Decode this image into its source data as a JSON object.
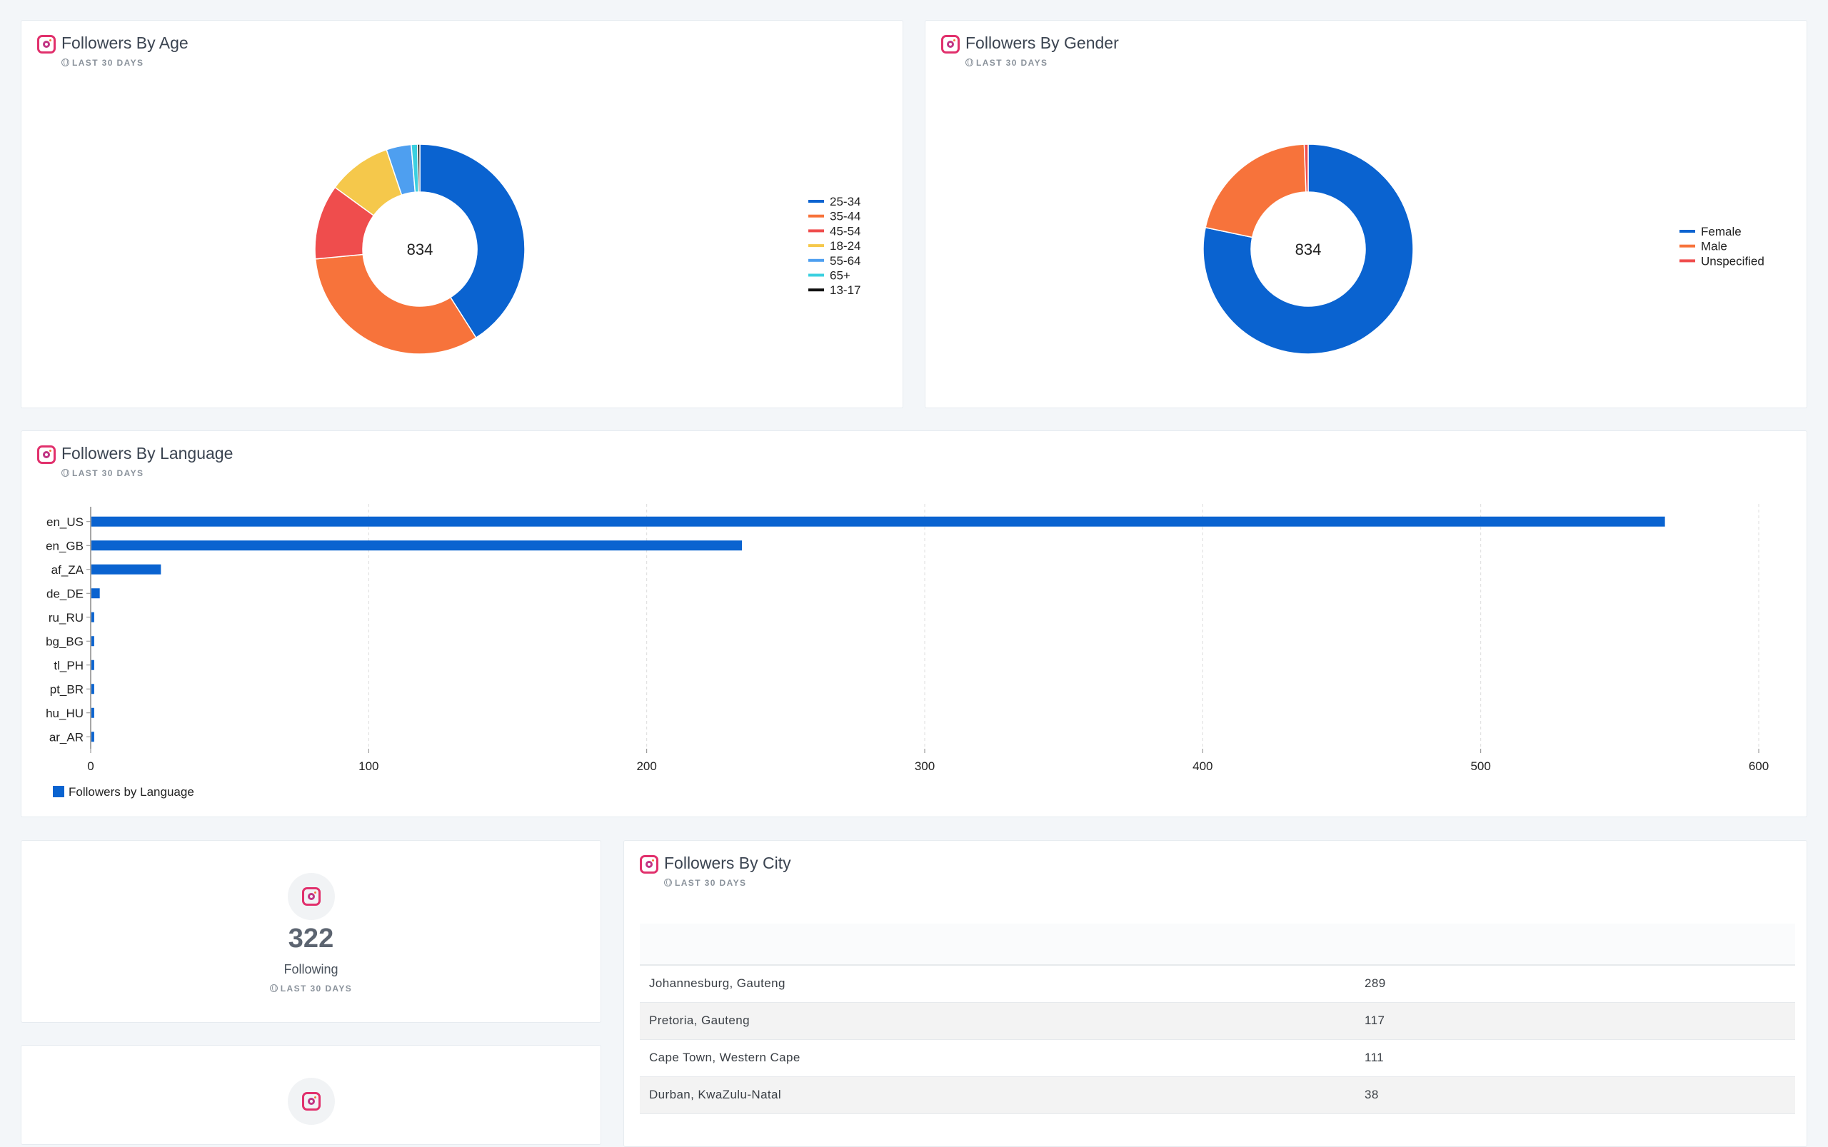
{
  "cards": {
    "age": {
      "title": "Followers By Age",
      "period": "LAST 30 DAYS"
    },
    "gender": {
      "title": "Followers By Gender",
      "period": "LAST 30 DAYS"
    },
    "language": {
      "title": "Followers By Language",
      "period": "LAST 30 DAYS"
    },
    "following": {
      "value": "322",
      "label": "Following",
      "period": "LAST 30 DAYS"
    },
    "city": {
      "title": "Followers By City",
      "period": "LAST 30 DAYS"
    }
  },
  "chart_data": [
    {
      "type": "pie",
      "center_label": "834",
      "legend_position": "right",
      "labels": [
        "25-34",
        "35-44",
        "45-54",
        "18-24",
        "55-64",
        "65+",
        "13-17"
      ],
      "values": [
        342,
        271,
        96,
        82,
        32,
        8,
        3
      ],
      "colors": [
        "#0a63d0",
        "#f7733b",
        "#ef4d4d",
        "#f5c84b",
        "#4e9ff0",
        "#3bd0e0",
        "#111111"
      ]
    },
    {
      "type": "pie",
      "center_label": "834",
      "legend_position": "right",
      "labels": [
        "Female",
        "Male",
        "Unspecified"
      ],
      "values": [
        653,
        176,
        5
      ],
      "colors": [
        "#0a63d0",
        "#f7733b",
        "#ef4d4d"
      ]
    },
    {
      "type": "bar",
      "orientation": "horizontal",
      "categories": [
        "en_US",
        "en_GB",
        "af_ZA",
        "de_DE",
        "ru_RU",
        "bg_BG",
        "tl_PH",
        "pt_BR",
        "hu_HU",
        "ar_AR"
      ],
      "series": [
        {
          "name": "Followers by Language",
          "values": [
            566,
            234,
            25,
            3,
            1,
            1,
            1,
            1,
            1,
            1
          ],
          "color": "#0a63d0"
        }
      ],
      "xlim": [
        0,
        600
      ],
      "xticks": [
        "0",
        "100",
        "200",
        "300",
        "400",
        "500",
        "600"
      ],
      "grid": true,
      "legend_position": "bottom-left"
    },
    {
      "type": "table",
      "rows": [
        {
          "city": "Johannesburg, Gauteng",
          "count": "289"
        },
        {
          "city": "Pretoria, Gauteng",
          "count": "117"
        },
        {
          "city": "Cape Town, Western Cape",
          "count": "111"
        },
        {
          "city": "Durban, KwaZulu-Natal",
          "count": "38"
        }
      ]
    }
  ]
}
